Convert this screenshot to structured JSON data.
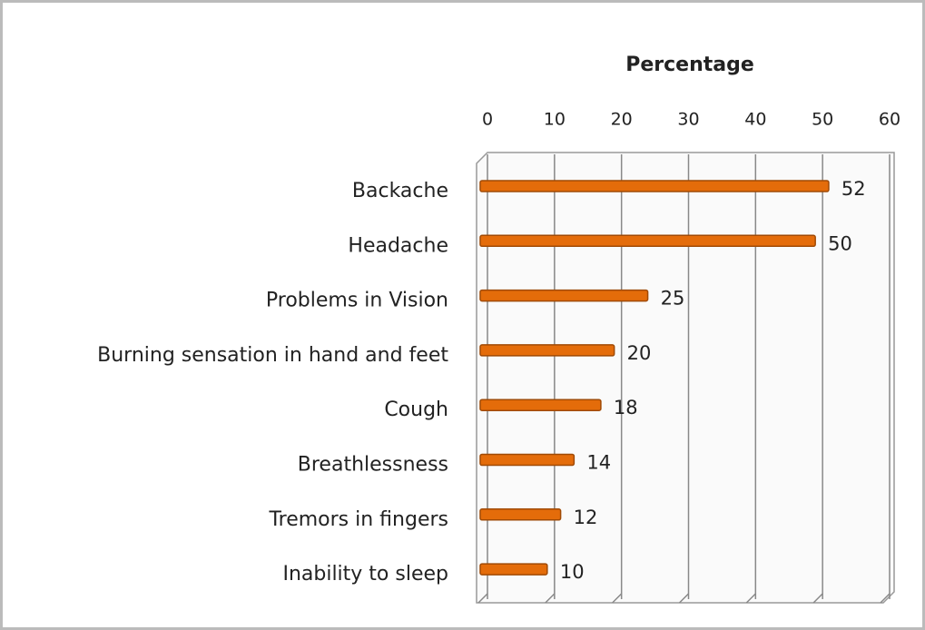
{
  "chart_data": {
    "type": "bar",
    "orientation": "horizontal",
    "title": "Percentage",
    "categories": [
      "Backache",
      "Headache",
      "Problems in Vision",
      "Burning sensation in hand and feet",
      "Cough",
      "Breathlessness",
      "Tremors in fingers",
      "Inability to sleep"
    ],
    "values": [
      52,
      50,
      25,
      20,
      18,
      14,
      12,
      10
    ],
    "color": "#e46c0a",
    "xlim": [
      0,
      60
    ],
    "xticks": [
      0,
      10,
      20,
      30,
      40,
      50,
      60
    ],
    "grid": true
  }
}
